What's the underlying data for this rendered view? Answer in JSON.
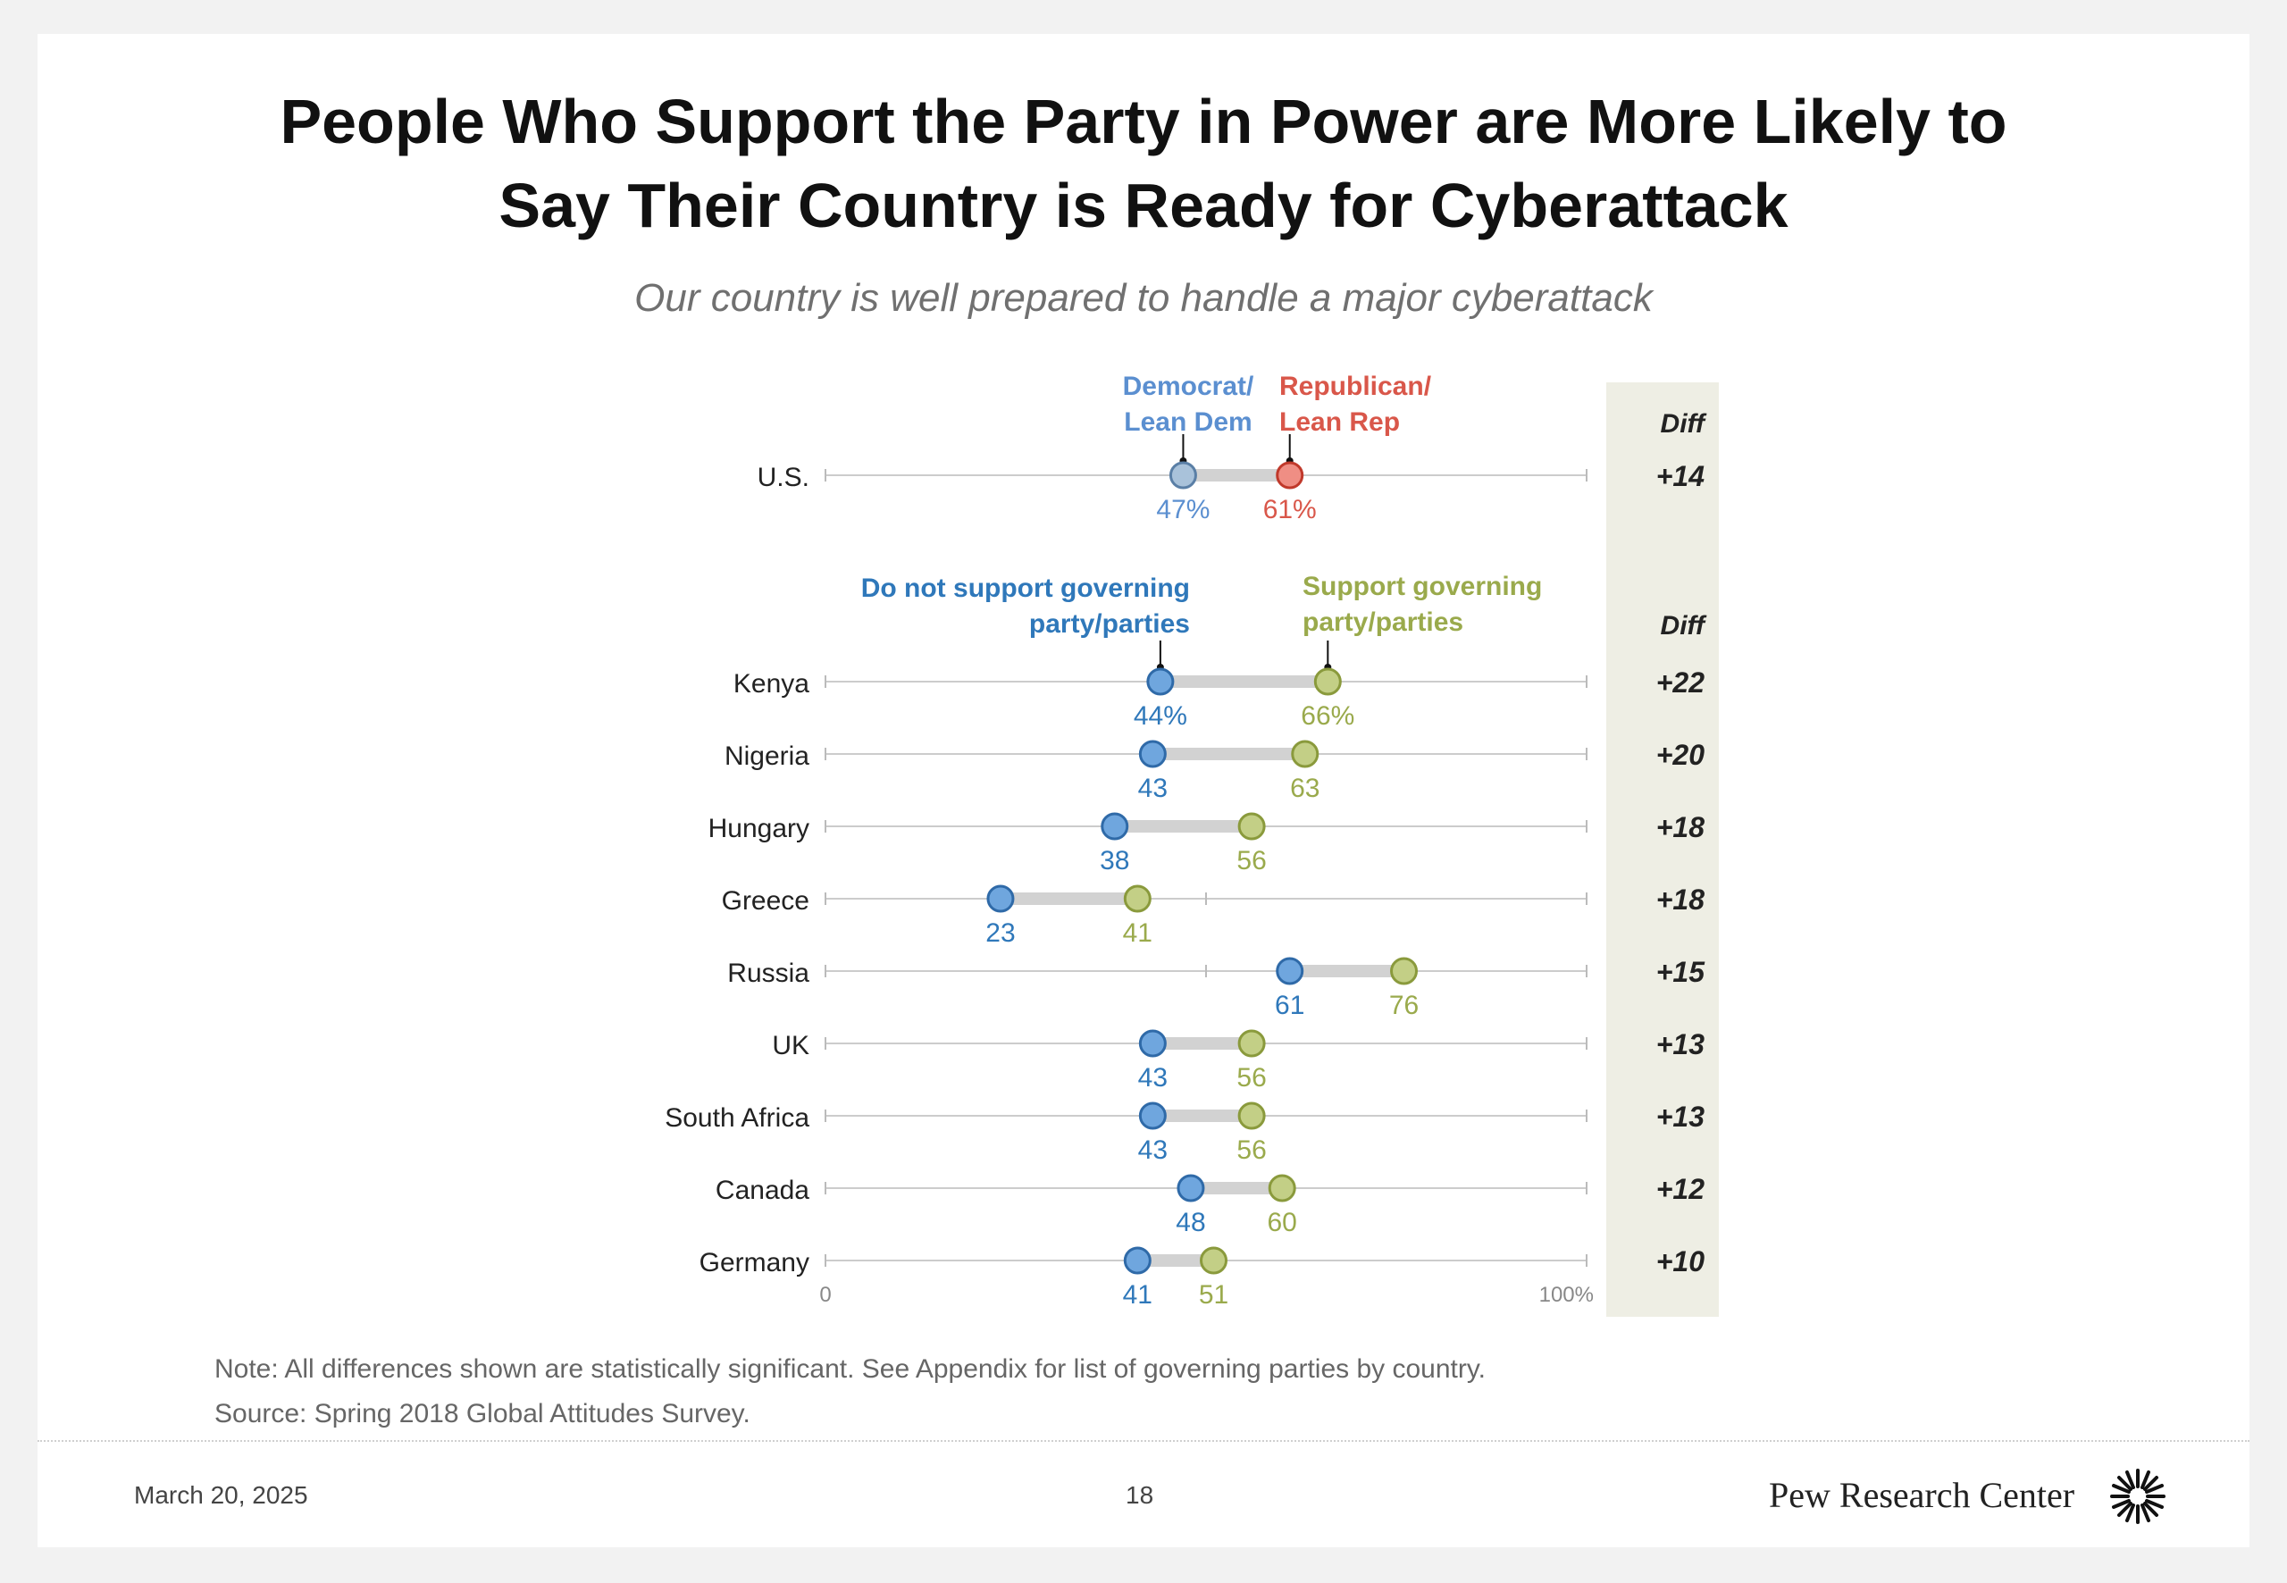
{
  "header": {
    "title_line1": "People Who Support the Party in Power are More Likely to",
    "title_line2": "Say Their Country is Ready for Cyberattack",
    "subtitle": "Our country is well prepared to handle a major cyberattack"
  },
  "chart_data": {
    "type": "dot-plot",
    "xlim": [
      0,
      100
    ],
    "axis_min_label": "0",
    "axis_max_label": "100%",
    "diff_header": "Diff",
    "colors": {
      "dem": "#5b8fd0",
      "rep": "#d9574a",
      "not_support": "#2f78ba",
      "support": "#9aaa4c",
      "us_dem_fill": "#a9c2da",
      "us_rep_fill": "#ef8e84",
      "country_dot_blue": "#6fa6de",
      "country_dot_green": "#c3cf86",
      "diff_panel": "#eeeee4"
    },
    "us_section": {
      "legend": {
        "low_line1": "Democrat/",
        "low_line2": "Lean Dem",
        "high_line1": "Republican/",
        "high_line2": "Lean Rep"
      },
      "rows": [
        {
          "label": "U.S.",
          "low": 47,
          "high": 61,
          "low_label": "47%",
          "high_label": "61%",
          "diff": "+14"
        }
      ]
    },
    "country_section": {
      "legend": {
        "low_line1": "Do not support governing",
        "low_line2": "party/parties",
        "high_line1": "Support governing",
        "high_line2": "party/parties"
      },
      "rows": [
        {
          "label": "Kenya",
          "low": 44,
          "high": 66,
          "low_label": "44%",
          "high_label": "66%",
          "diff": "+22"
        },
        {
          "label": "Nigeria",
          "low": 43,
          "high": 63,
          "low_label": "43",
          "high_label": "63",
          "diff": "+20"
        },
        {
          "label": "Hungary",
          "low": 38,
          "high": 56,
          "low_label": "38",
          "high_label": "56",
          "diff": "+18"
        },
        {
          "label": "Greece",
          "low": 23,
          "high": 41,
          "low_label": "23",
          "high_label": "41",
          "diff": "+18"
        },
        {
          "label": "Russia",
          "low": 61,
          "high": 76,
          "low_label": "61",
          "high_label": "76",
          "diff": "+15"
        },
        {
          "label": "UK",
          "low": 43,
          "high": 56,
          "low_label": "43",
          "high_label": "56",
          "diff": "+13"
        },
        {
          "label": "South Africa",
          "low": 43,
          "high": 56,
          "low_label": "43",
          "high_label": "56",
          "diff": "+13"
        },
        {
          "label": "Canada",
          "low": 48,
          "high": 60,
          "low_label": "48",
          "high_label": "60",
          "diff": "+12"
        },
        {
          "label": "Germany",
          "low": 41,
          "high": 51,
          "low_label": "41",
          "high_label": "51",
          "diff": "+10"
        }
      ]
    }
  },
  "notes": {
    "note": "Note: All differences shown are statistically significant. See Appendix for list of governing parties by country.",
    "source": "Source: Spring 2018 Global Attitudes Survey."
  },
  "footer": {
    "date": "March 20, 2025",
    "page": "18",
    "brand": "Pew Research Center",
    "brand_icon": "pew-sunburst-icon"
  }
}
